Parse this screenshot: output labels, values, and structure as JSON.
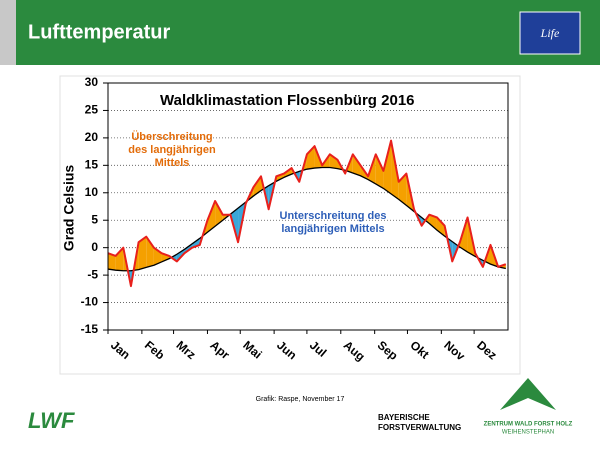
{
  "header": {
    "title": "Lufttemperatur"
  },
  "chart_data": {
    "type": "line",
    "title": "Waldklimastation Flossenbürg 2016",
    "y_label": "Grad Celsius",
    "annotations": [
      {
        "text": "Überschreitung des langjährigen Mittels",
        "color": "#e36c0a"
      },
      {
        "text": "Unterschreitung des langjährigen Mittels",
        "color": "#2e5fb8"
      }
    ],
    "x": [
      0,
      7,
      14,
      21,
      28,
      35,
      42,
      49,
      56,
      63,
      70,
      77,
      84,
      91,
      98,
      105,
      112,
      119,
      126,
      133,
      140,
      147,
      154,
      161,
      168,
      175,
      182,
      189,
      196,
      203,
      210,
      217,
      224,
      231,
      238,
      245,
      252,
      259,
      266,
      273,
      280,
      287,
      294,
      301,
      308,
      315,
      322,
      329,
      336,
      343,
      350,
      357,
      364
    ],
    "xlim": [
      0,
      366
    ],
    "xticks": [
      {
        "value": 0,
        "label": "Jan"
      },
      {
        "value": 31,
        "label": "Feb"
      },
      {
        "value": 60,
        "label": "Mrz"
      },
      {
        "value": 91,
        "label": "Apr"
      },
      {
        "value": 121,
        "label": "Mai"
      },
      {
        "value": 152,
        "label": "Jun"
      },
      {
        "value": 182,
        "label": "Jul"
      },
      {
        "value": 213,
        "label": "Aug"
      },
      {
        "value": 244,
        "label": "Sep"
      },
      {
        "value": 274,
        "label": "Okt"
      },
      {
        "value": 305,
        "label": "Nov"
      },
      {
        "value": 335,
        "label": "Dez"
      }
    ],
    "ylim": [
      -15,
      30
    ],
    "yticks": [
      -15,
      -10,
      -5,
      0,
      5,
      10,
      15,
      20,
      25,
      30
    ],
    "grid": true,
    "above_color": "#f5a000",
    "below_color": "#3aa7d9",
    "series": [
      {
        "color": "#e8201c",
        "values": [
          -1,
          -1.5,
          0,
          -7,
          1,
          2,
          0,
          -1,
          -1.5,
          -2.5,
          -1,
          0,
          0.5,
          5,
          8.5,
          6,
          6,
          1,
          8,
          11,
          13,
          7,
          13,
          13.5,
          14.5,
          12,
          17,
          18.5,
          15,
          17,
          16,
          13.5,
          17,
          15,
          13,
          17,
          14,
          19.5,
          12,
          13.5,
          7,
          4,
          6,
          5.5,
          4,
          -2.5,
          1,
          5.5,
          -1,
          -3.5,
          0.5,
          -3.5,
          -3
        ]
      },
      {
        "color": "#000000",
        "values": [
          -3.9,
          -4.1,
          -4.2,
          -4.2,
          -4.0,
          -3.6,
          -3.2,
          -2.6,
          -2.0,
          -1.2,
          -0.3,
          0.7,
          1.7,
          2.8,
          3.9,
          5.0,
          6.1,
          7.2,
          8.3,
          9.4,
          10.4,
          11.3,
          12.1,
          12.8,
          13.4,
          13.9,
          14.3,
          14.5,
          14.6,
          14.6,
          14.4,
          14.1,
          13.6,
          13.1,
          12.4,
          11.6,
          10.8,
          9.8,
          8.8,
          7.7,
          6.6,
          5.5,
          4.4,
          3.2,
          2.1,
          1.1,
          0.1,
          -0.8,
          -1.6,
          -2.3,
          -3.0,
          -3.5,
          -3.8
        ]
      }
    ]
  },
  "footer": {
    "credit": "Grafik: Raspe, November 17",
    "logo_left": "LWF",
    "logo_mid": [
      "BAYERISCHE",
      "FORSTVERWALTUNG"
    ],
    "logo_right": [
      "ZENTRUM WALD FORST HOLZ",
      "WEIHENSTEPHAN"
    ],
    "eu_logo": "Life"
  }
}
